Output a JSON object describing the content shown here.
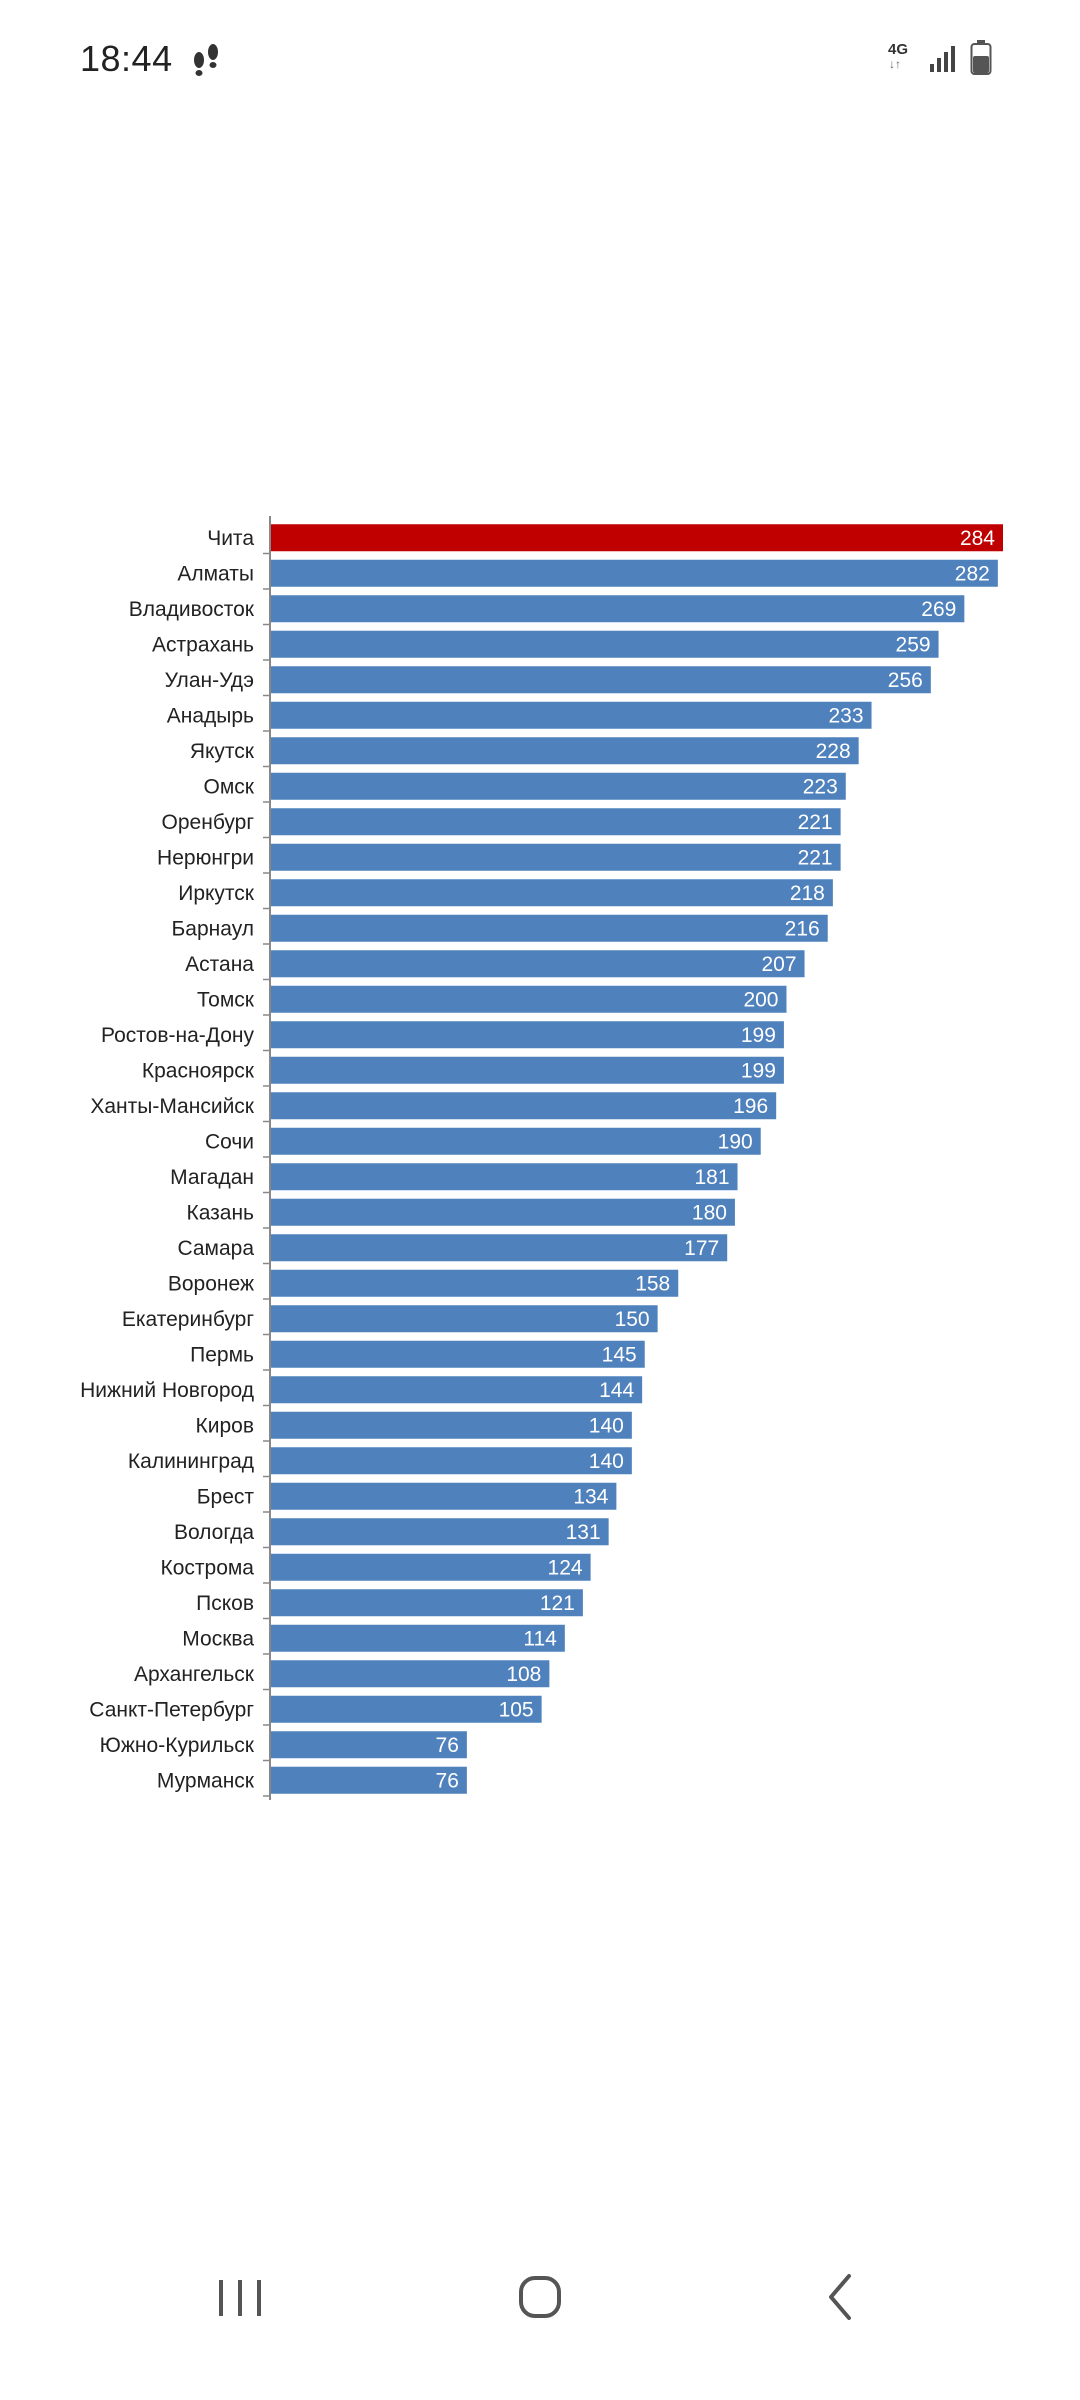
{
  "status_bar": {
    "time": "18:44",
    "network": "4G",
    "network_arrows": "↓↑"
  },
  "icons": [
    "footsteps-icon",
    "signal-icon",
    "battery-icon",
    "recents-icon",
    "home-icon",
    "back-icon"
  ],
  "colors": {
    "highlight": "#C00000",
    "bar": "#4F81BD",
    "value_text": "#ffffff",
    "label_text": "#222222",
    "axis": "#888888"
  },
  "chart_data": {
    "type": "bar",
    "orientation": "horizontal",
    "title": "",
    "xlabel": "",
    "ylabel": "",
    "xlim": [
      0,
      284
    ],
    "grid": false,
    "highlight_category": "Чита",
    "categories": [
      "Чита",
      "Алматы",
      "Владивосток",
      "Астрахань",
      "Улан-Удэ",
      "Анадырь",
      "Якутск",
      "Омск",
      "Оренбург",
      "Нерюнгри",
      "Иркутск",
      "Барнаул",
      "Астана",
      "Томск",
      "Ростов-на-Дону",
      "Красноярск",
      "Ханты-Мансийск",
      "Сочи",
      "Магадан",
      "Казань",
      "Самара",
      "Воронеж",
      "Екатеринбург",
      "Пермь",
      "Нижний Новгород",
      "Киров",
      "Калининград",
      "Брест",
      "Вологда",
      "Кострома",
      "Псков",
      "Москва",
      "Архангельск",
      "Санкт-Петербург",
      "Южно-Курильск",
      "Мурманск"
    ],
    "values": [
      284,
      282,
      269,
      259,
      256,
      233,
      228,
      223,
      221,
      221,
      218,
      216,
      207,
      200,
      199,
      199,
      196,
      190,
      181,
      180,
      177,
      158,
      150,
      145,
      144,
      140,
      140,
      134,
      131,
      124,
      121,
      114,
      108,
      105,
      76,
      76
    ]
  }
}
